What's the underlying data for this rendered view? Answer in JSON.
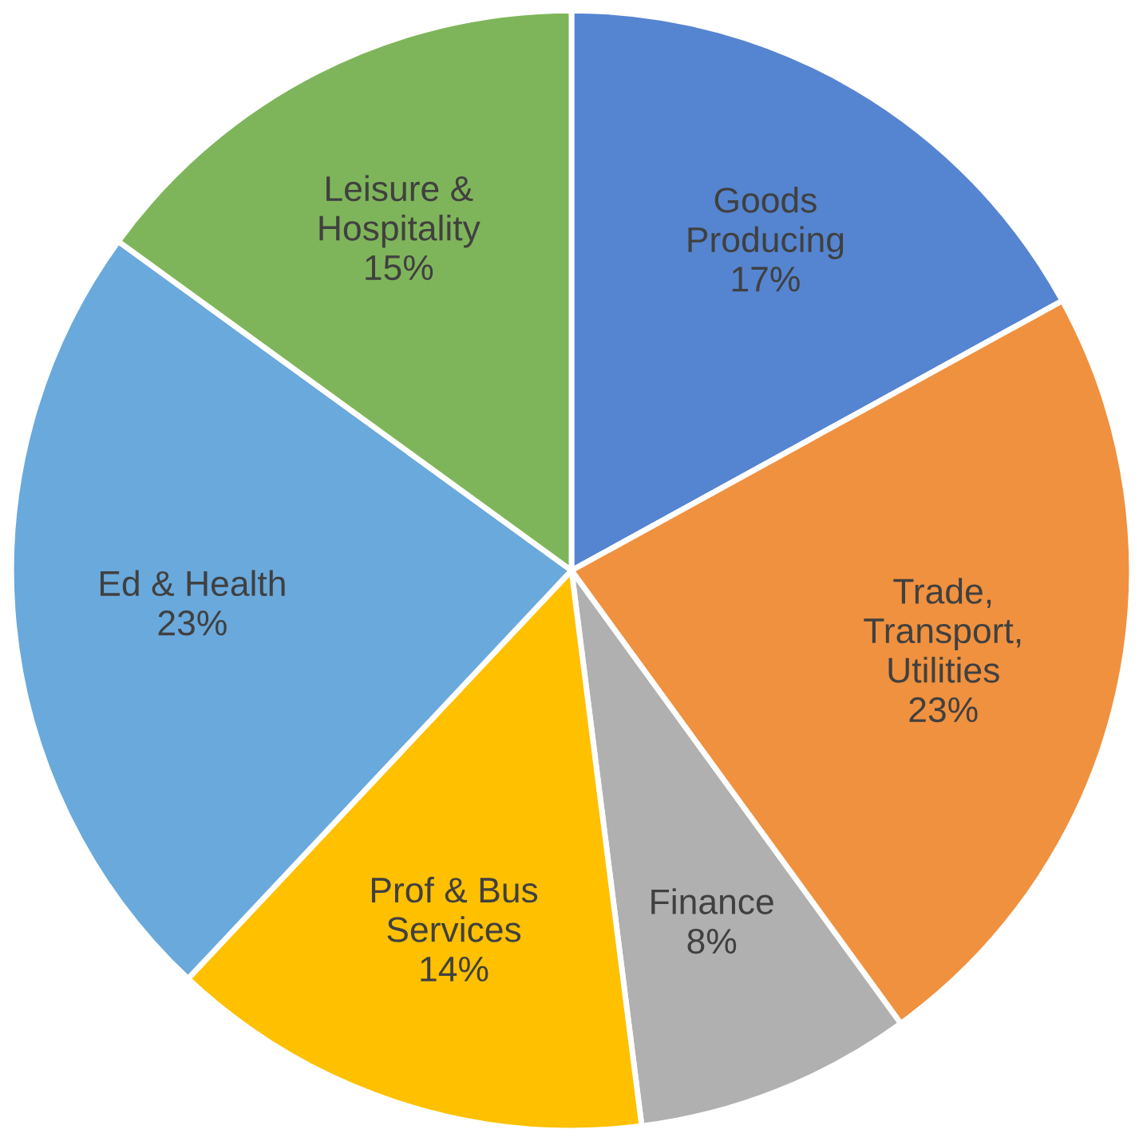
{
  "chart_data": {
    "type": "pie",
    "categories": [
      "Goods\nProducing",
      "Trade,\nTransport,\nUtilities",
      "Finance",
      "Prof & Bus\nServices",
      "Ed & Health",
      "Leisure &\nHospitality"
    ],
    "values": [
      17,
      23,
      8,
      14,
      23,
      15
    ],
    "value_labels": [
      "17%",
      "23%",
      "8%",
      "14%",
      "23%",
      "15%"
    ],
    "colors": [
      "#5585d0",
      "#f0913f",
      "#b0b0b0",
      "#ffc000",
      "#6aa9dc",
      "#7fb55a"
    ],
    "legend": false
  }
}
